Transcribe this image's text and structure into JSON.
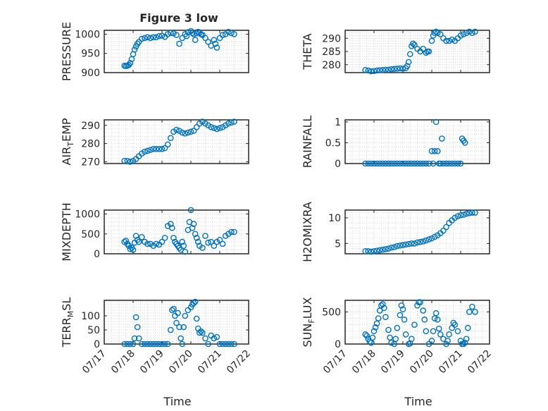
{
  "figure": {
    "title": "Figure 3 low",
    "xlabel": "Time",
    "marker_color": "#0072BD"
  },
  "chart_data": [
    {
      "type": "scatter",
      "title": "Figure 3 low",
      "ylabel": "PRESSURE",
      "ylim": [
        900,
        1010
      ],
      "yticks": [
        900,
        950,
        1000
      ],
      "grid": true,
      "show_xticklabels": false,
      "series": [
        {
          "x": [
            17.7,
            17.75,
            17.8,
            17.85,
            17.9,
            17.95,
            18.0,
            18.05,
            18.1,
            18.15,
            18.2,
            18.3,
            18.4,
            18.5,
            18.6,
            18.7,
            18.8,
            18.9,
            19.0,
            19.1,
            19.2,
            19.3,
            19.4,
            19.5,
            19.6,
            19.7,
            19.8,
            19.85,
            19.9,
            20.0,
            20.05,
            20.1,
            20.15,
            20.2,
            20.25,
            20.3,
            20.35,
            20.4,
            20.5,
            20.6,
            20.7,
            20.8,
            20.85,
            20.9,
            21.0,
            21.1,
            21.2,
            21.3,
            21.4,
            21.5
          ],
          "y": [
            918,
            917,
            918,
            920,
            925,
            935,
            948,
            960,
            968,
            975,
            980,
            988,
            990,
            992,
            990,
            992,
            992,
            995,
            996,
            993,
            1000,
            1003,
            1002,
            998,
            975,
            990,
            1000,
            995,
            1005,
            1008,
            1003,
            1000,
            985,
            1002,
            1006,
            1003,
            1000,
            998,
            990,
            980,
            970,
            985,
            975,
            965,
            990,
            998,
            1000,
            1006,
            1003,
            1000
          ]
        }
      ]
    },
    {
      "type": "scatter",
      "ylabel": "THETA",
      "ylim": [
        277,
        293
      ],
      "yticks": [
        280,
        285,
        290
      ],
      "grid": true,
      "show_xticklabels": false,
      "series": [
        {
          "x": [
            17.7,
            17.8,
            17.9,
            18.0,
            18.1,
            18.2,
            18.3,
            18.4,
            18.5,
            18.6,
            18.7,
            18.8,
            18.9,
            19.0,
            19.1,
            19.15,
            19.2,
            19.25,
            19.3,
            19.35,
            19.4,
            19.5,
            19.6,
            19.7,
            19.8,
            19.85,
            19.9,
            20.0,
            20.05,
            20.1,
            20.15,
            20.2,
            20.3,
            20.4,
            20.5,
            20.6,
            20.7,
            20.8,
            20.9,
            21.0,
            21.1,
            21.2,
            21.3,
            21.4,
            21.5
          ],
          "y": [
            278,
            277.8,
            277.5,
            277.6,
            277.8,
            277.9,
            278,
            278.1,
            278.1,
            278.3,
            278.4,
            278.5,
            278.6,
            278.5,
            278.7,
            279.5,
            281,
            284,
            287,
            288,
            287.5,
            286,
            285,
            286,
            284.5,
            285,
            285,
            289,
            291,
            292,
            292.5,
            292,
            291.5,
            290,
            289,
            289,
            289.5,
            289,
            290,
            291,
            291.5,
            292,
            292.5,
            292,
            292.5
          ]
        }
      ]
    },
    {
      "type": "scatter",
      "ylabel": "AIR_TEMP",
      "ylim": [
        269,
        293
      ],
      "yticks": [
        270,
        280,
        290
      ],
      "grid": true,
      "show_xticklabels": false,
      "series": [
        {
          "x": [
            17.7,
            17.8,
            17.9,
            18.0,
            18.1,
            18.2,
            18.3,
            18.4,
            18.5,
            18.6,
            18.7,
            18.8,
            18.9,
            19.0,
            19.1,
            19.2,
            19.3,
            19.4,
            19.5,
            19.6,
            19.7,
            19.8,
            19.9,
            20.0,
            20.1,
            20.2,
            20.3,
            20.4,
            20.5,
            20.6,
            20.7,
            20.8,
            20.9,
            21.0,
            21.1,
            21.2,
            21.3,
            21.4,
            21.5
          ],
          "y": [
            270.5,
            270.5,
            270,
            270.5,
            271.5,
            273,
            274.5,
            275.5,
            276,
            276.5,
            277,
            277,
            277,
            277,
            277.5,
            279.5,
            283,
            286.5,
            287.5,
            287,
            286,
            285.5,
            286,
            286.5,
            287,
            289,
            291,
            292,
            291,
            290,
            289,
            288.5,
            288,
            288.5,
            289,
            290,
            291,
            291.5,
            292
          ]
        }
      ]
    },
    {
      "type": "scatter",
      "ylabel": "RAINFALL",
      "ylim": [
        0,
        1.05
      ],
      "yticks": [
        0,
        0.5,
        1
      ],
      "grid": true,
      "show_xticklabels": false,
      "series": [
        {
          "x": [
            17.7,
            17.8,
            17.9,
            18.0,
            18.1,
            18.2,
            18.3,
            18.4,
            18.5,
            18.6,
            18.7,
            18.8,
            18.9,
            19.0,
            19.1,
            19.2,
            19.3,
            19.4,
            19.5,
            19.6,
            19.7,
            19.8,
            19.9,
            20.0,
            20.05,
            20.1,
            20.15,
            20.2,
            20.25,
            20.3,
            20.35,
            20.4,
            20.5,
            20.6,
            20.7,
            20.8,
            20.9,
            21.0,
            21.05,
            21.1,
            21.15
          ],
          "y": [
            0,
            0,
            0,
            0,
            0,
            0,
            0,
            0,
            0,
            0,
            0,
            0,
            0,
            0,
            0,
            0,
            0,
            0,
            0,
            0,
            0,
            0,
            0,
            0.3,
            0,
            0.3,
            1.0,
            0.3,
            0,
            0,
            0.6,
            0,
            0,
            0,
            0,
            0,
            0,
            0,
            0.6,
            0.55,
            0.5
          ]
        }
      ]
    },
    {
      "type": "scatter",
      "ylabel": "MIXDEPTH",
      "ylim": [
        0,
        1100
      ],
      "yticks": [
        0,
        500,
        1000
      ],
      "grid": true,
      "show_xticklabels": false,
      "series": [
        {
          "x": [
            17.7,
            17.75,
            17.8,
            17.85,
            17.9,
            17.95,
            18.0,
            18.05,
            18.1,
            18.15,
            18.2,
            18.3,
            18.4,
            18.5,
            18.6,
            18.7,
            18.8,
            18.9,
            19.0,
            19.1,
            19.2,
            19.3,
            19.35,
            19.4,
            19.45,
            19.5,
            19.55,
            19.6,
            19.65,
            19.7,
            19.75,
            19.8,
            19.9,
            19.95,
            20.0,
            20.05,
            20.1,
            20.15,
            20.2,
            20.25,
            20.3,
            20.4,
            20.5,
            20.6,
            20.7,
            20.8,
            20.9,
            21.0,
            21.1,
            21.2,
            21.3,
            21.4,
            21.5
          ],
          "y": [
            300,
            330,
            250,
            200,
            120,
            150,
            100,
            280,
            450,
            350,
            300,
            420,
            300,
            250,
            250,
            200,
            250,
            230,
            300,
            400,
            700,
            750,
            650,
            400,
            300,
            250,
            200,
            150,
            100,
            300,
            200,
            50,
            600,
            800,
            1100,
            650,
            750,
            500,
            400,
            300,
            200,
            150,
            450,
            280,
            300,
            200,
            300,
            350,
            250,
            450,
            500,
            550,
            550
          ]
        }
      ]
    },
    {
      "type": "scatter",
      "ylabel": "H2OMIXRA",
      "ylim": [
        3,
        11.5
      ],
      "yticks": [
        5,
        10
      ],
      "grid": true,
      "show_xticklabels": false,
      "series": [
        {
          "x": [
            17.7,
            17.8,
            17.9,
            18.0,
            18.1,
            18.2,
            18.3,
            18.4,
            18.5,
            18.6,
            18.7,
            18.8,
            18.9,
            19.0,
            19.1,
            19.2,
            19.3,
            19.4,
            19.5,
            19.6,
            19.7,
            19.8,
            19.9,
            20.0,
            20.1,
            20.2,
            20.3,
            20.4,
            20.5,
            20.6,
            20.7,
            20.8,
            20.9,
            21.0,
            21.1,
            21.2,
            21.3,
            21.4,
            21.5
          ],
          "y": [
            3.5,
            3.5,
            3.4,
            3.5,
            3.6,
            3.7,
            3.8,
            3.9,
            4.0,
            4.2,
            4.3,
            4.5,
            4.6,
            4.7,
            4.8,
            4.9,
            5.0,
            5.0,
            5.2,
            5.3,
            5.4,
            5.6,
            5.8,
            6.0,
            6.3,
            6.6,
            7.0,
            7.5,
            8.2,
            9.0,
            9.5,
            10.0,
            10.3,
            10.5,
            10.6,
            10.8,
            10.9,
            11.0,
            11.0
          ]
        }
      ]
    },
    {
      "type": "scatter",
      "ylabel": "TERR_MSL",
      "ylim": [
        0,
        155
      ],
      "yticks": [
        0,
        50,
        100
      ],
      "grid": true,
      "show_xticklabels": true,
      "series": [
        {
          "x": [
            17.7,
            17.8,
            17.9,
            18.0,
            18.05,
            18.1,
            18.15,
            18.2,
            18.3,
            18.4,
            18.5,
            18.6,
            18.7,
            18.8,
            18.9,
            19.0,
            19.1,
            19.2,
            19.3,
            19.35,
            19.4,
            19.45,
            19.5,
            19.55,
            19.6,
            19.65,
            19.7,
            19.75,
            19.8,
            19.9,
            20.0,
            20.05,
            20.1,
            20.15,
            20.2,
            20.25,
            20.3,
            20.35,
            20.4,
            20.5,
            20.6,
            20.7,
            20.8,
            20.9,
            21.0,
            21.1,
            21.2,
            21.3,
            21.4,
            21.5
          ],
          "y": [
            0,
            0,
            0,
            0,
            20,
            95,
            60,
            20,
            0,
            0,
            0,
            0,
            0,
            0,
            0,
            0,
            0,
            0,
            50,
            120,
            125,
            100,
            75,
            110,
            60,
            20,
            0,
            60,
            100,
            120,
            130,
            140,
            145,
            150,
            90,
            55,
            40,
            45,
            40,
            20,
            0,
            30,
            20,
            25,
            0,
            0,
            0,
            0,
            0,
            0
          ]
        }
      ]
    },
    {
      "type": "scatter",
      "ylabel": "SUN_FLUX",
      "ylim": [
        0,
        680
      ],
      "yticks": [
        0,
        500
      ],
      "grid": true,
      "show_xticklabels": true,
      "series": [
        {
          "x": [
            17.7,
            17.75,
            17.8,
            17.85,
            17.9,
            17.95,
            18.0,
            18.05,
            18.1,
            18.15,
            18.2,
            18.25,
            18.3,
            18.35,
            18.4,
            18.5,
            18.55,
            18.6,
            18.7,
            18.75,
            18.8,
            18.9,
            18.95,
            19.0,
            19.05,
            19.1,
            19.2,
            19.25,
            19.3,
            19.4,
            19.5,
            19.55,
            19.6,
            19.7,
            19.75,
            19.8,
            19.9,
            20.0,
            20.05,
            20.1,
            20.15,
            20.2,
            20.25,
            20.3,
            20.4,
            20.5,
            20.55,
            20.6,
            20.7,
            20.75,
            20.8,
            20.9,
            21.0,
            21.05,
            21.1,
            21.15,
            21.2,
            21.25,
            21.3,
            21.4,
            21.5
          ],
          "y": [
            150,
            130,
            80,
            40,
            20,
            100,
            200,
            260,
            320,
            400,
            520,
            600,
            620,
            560,
            420,
            220,
            100,
            20,
            0,
            80,
            250,
            450,
            600,
            540,
            380,
            150,
            0,
            10,
            80,
            300,
            600,
            650,
            650,
            520,
            380,
            200,
            0,
            50,
            200,
            400,
            480,
            380,
            240,
            150,
            80,
            0,
            50,
            150,
            250,
            330,
            300,
            200,
            50,
            0,
            0,
            20,
            80,
            250,
            500,
            580,
            500
          ]
        }
      ]
    }
  ],
  "axes_common": {
    "xlim": [
      17,
      22
    ],
    "xticks": [
      17,
      18,
      19,
      20,
      21,
      22
    ],
    "xticklabels": [
      "07/17",
      "07/18",
      "07/19",
      "07/20",
      "07/21",
      "07/22"
    ]
  }
}
